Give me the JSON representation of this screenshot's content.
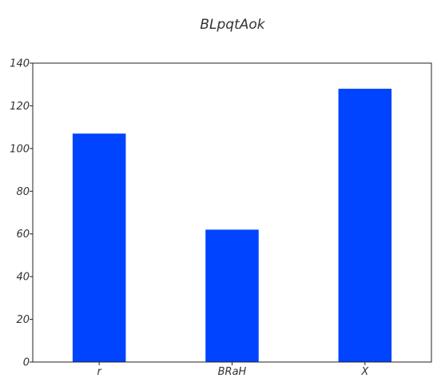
{
  "chart_data": {
    "type": "bar",
    "title": "BLpqtAok",
    "xlabel": "",
    "ylabel": "",
    "categories": [
      "r",
      "BRaH",
      "X"
    ],
    "values": [
      107,
      62,
      128
    ],
    "ylim": [
      0,
      140
    ],
    "yticks": [
      0,
      20,
      40,
      60,
      80,
      100,
      120,
      140
    ],
    "grid": false,
    "bar_color": "#0044ff"
  }
}
